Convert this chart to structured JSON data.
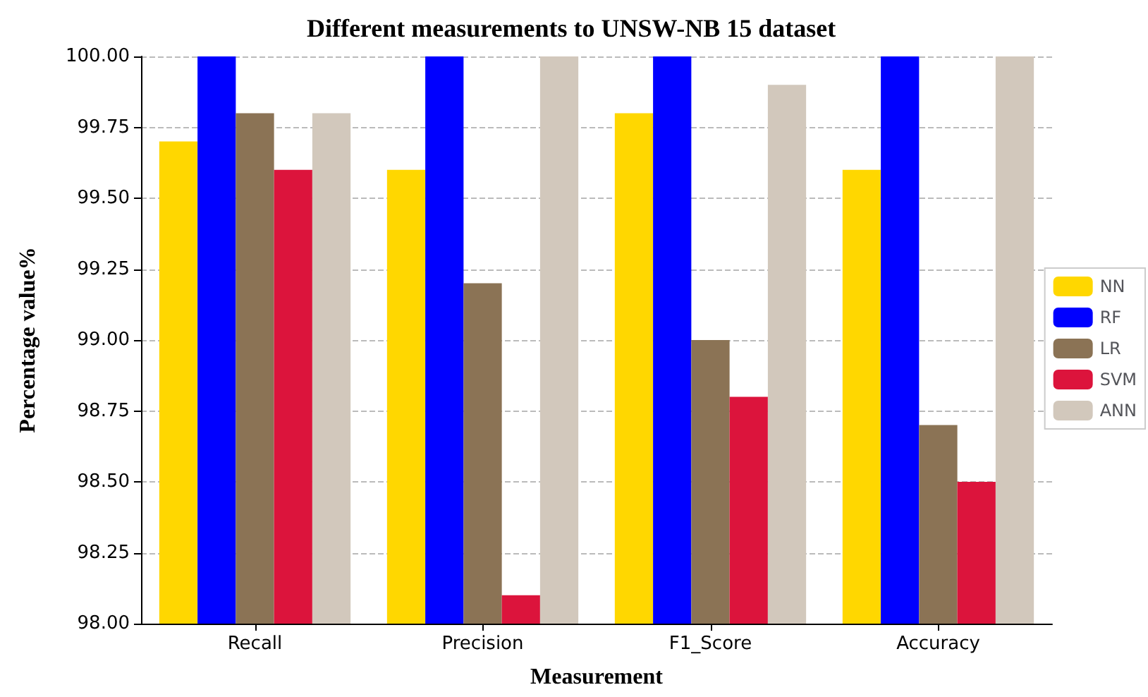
{
  "chart_data": {
    "type": "bar",
    "title": "Different measurements to UNSW-NB 15 dataset",
    "xlabel": "Measurement",
    "ylabel": "Percentage value%",
    "categories": [
      "Recall",
      "Precision",
      "F1_Score",
      "Accuracy"
    ],
    "series": [
      {
        "name": "NN",
        "color": "#ffd700",
        "values": [
          99.7,
          99.6,
          99.8,
          99.6
        ]
      },
      {
        "name": "RF",
        "color": "#0000ff",
        "values": [
          100,
          100,
          100,
          100
        ]
      },
      {
        "name": "LR",
        "color": "#8b7355",
        "values": [
          99.8,
          99.2,
          99.0,
          98.7
        ]
      },
      {
        "name": "SVM",
        "color": "#dc143c",
        "values": [
          99.6,
          98.1,
          98.8,
          98.5
        ]
      },
      {
        "name": "ANN",
        "color": "#d2c8bc",
        "values": [
          99.8,
          100,
          99.9,
          100
        ]
      }
    ],
    "ylim": [
      98,
      100
    ],
    "yticks": [
      {
        "value": 98,
        "label": "98.00"
      },
      {
        "value": 98.25,
        "label": "98.25"
      },
      {
        "value": 98.5,
        "label": "98.50"
      },
      {
        "value": 98.75,
        "label": "98.75"
      },
      {
        "value": 99,
        "label": "99.00"
      },
      {
        "value": 99.25,
        "label": "99.25"
      },
      {
        "value": 99.5,
        "label": "99.50"
      },
      {
        "value": 99.75,
        "label": "99.75"
      },
      {
        "value": 100,
        "label": "100.00"
      }
    ],
    "grid": "y",
    "legend": "right"
  }
}
